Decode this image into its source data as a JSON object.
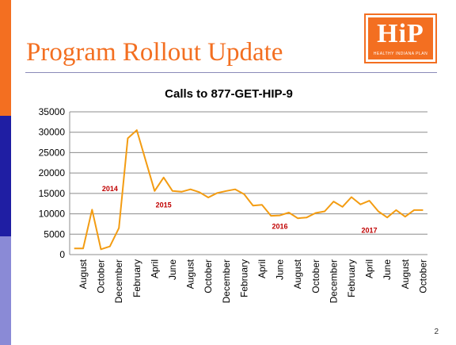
{
  "slide": {
    "title": "Program Rollout Update",
    "page_number": "2",
    "accent_color": "#f36f21",
    "navy_color": "#1f1ea3",
    "lavender_color": "#8a8ad6"
  },
  "logo": {
    "mark": "HiP",
    "tagline": "HEALTHY INDIANA PLAN",
    "color": "#f36f21"
  },
  "chart_data": {
    "type": "line",
    "title": "Calls to 877-GET-HIP-9",
    "xlabel": "",
    "ylabel": "",
    "ylim": [
      0,
      35000
    ],
    "yticks": [
      0,
      5000,
      10000,
      15000,
      20000,
      25000,
      30000,
      35000
    ],
    "grid": true,
    "legend": "none",
    "line_color": "#f39c12",
    "x": [
      "2014-07",
      "2014-08",
      "2014-09",
      "2014-10",
      "2014-11",
      "2014-12",
      "2015-01",
      "2015-02",
      "2015-03",
      "2015-04",
      "2015-05",
      "2015-06",
      "2015-07",
      "2015-08",
      "2015-09",
      "2015-10",
      "2015-11",
      "2015-12",
      "2016-01",
      "2016-02",
      "2016-03",
      "2016-04",
      "2016-05",
      "2016-06",
      "2016-07",
      "2016-08",
      "2016-09",
      "2016-10",
      "2016-11",
      "2016-12",
      "2017-01",
      "2017-02",
      "2017-03",
      "2017-04",
      "2017-05",
      "2017-06",
      "2017-07",
      "2017-08",
      "2017-09",
      "2017-10"
    ],
    "tick_labels": [
      "August",
      "October",
      "December",
      "February",
      "April",
      "June",
      "August",
      "October",
      "December",
      "February",
      "April",
      "June",
      "August",
      "October",
      "December",
      "February",
      "April",
      "June",
      "August",
      "October"
    ],
    "values": [
      1500,
      1500,
      11000,
      1300,
      2000,
      6500,
      28500,
      30500,
      23000,
      15600,
      18900,
      15600,
      15400,
      16000,
      15300,
      14000,
      15100,
      15600,
      16000,
      14800,
      12000,
      12200,
      9500,
      9600,
      10300,
      8900,
      9100,
      10200,
      10600,
      13000,
      11700,
      14100,
      12300,
      13200,
      10600,
      9100,
      10900,
      9300,
      10900,
      10900
    ],
    "annotations": [
      {
        "text": "2014",
        "x": "2014-11",
        "y": 15600
      },
      {
        "text": "2015",
        "x": "2015-05",
        "y": 11600
      },
      {
        "text": "2016",
        "x": "2016-06",
        "y": 6300
      },
      {
        "text": "2017",
        "x": "2017-04",
        "y": 5300
      }
    ],
    "annotation_color": "#c00000"
  }
}
